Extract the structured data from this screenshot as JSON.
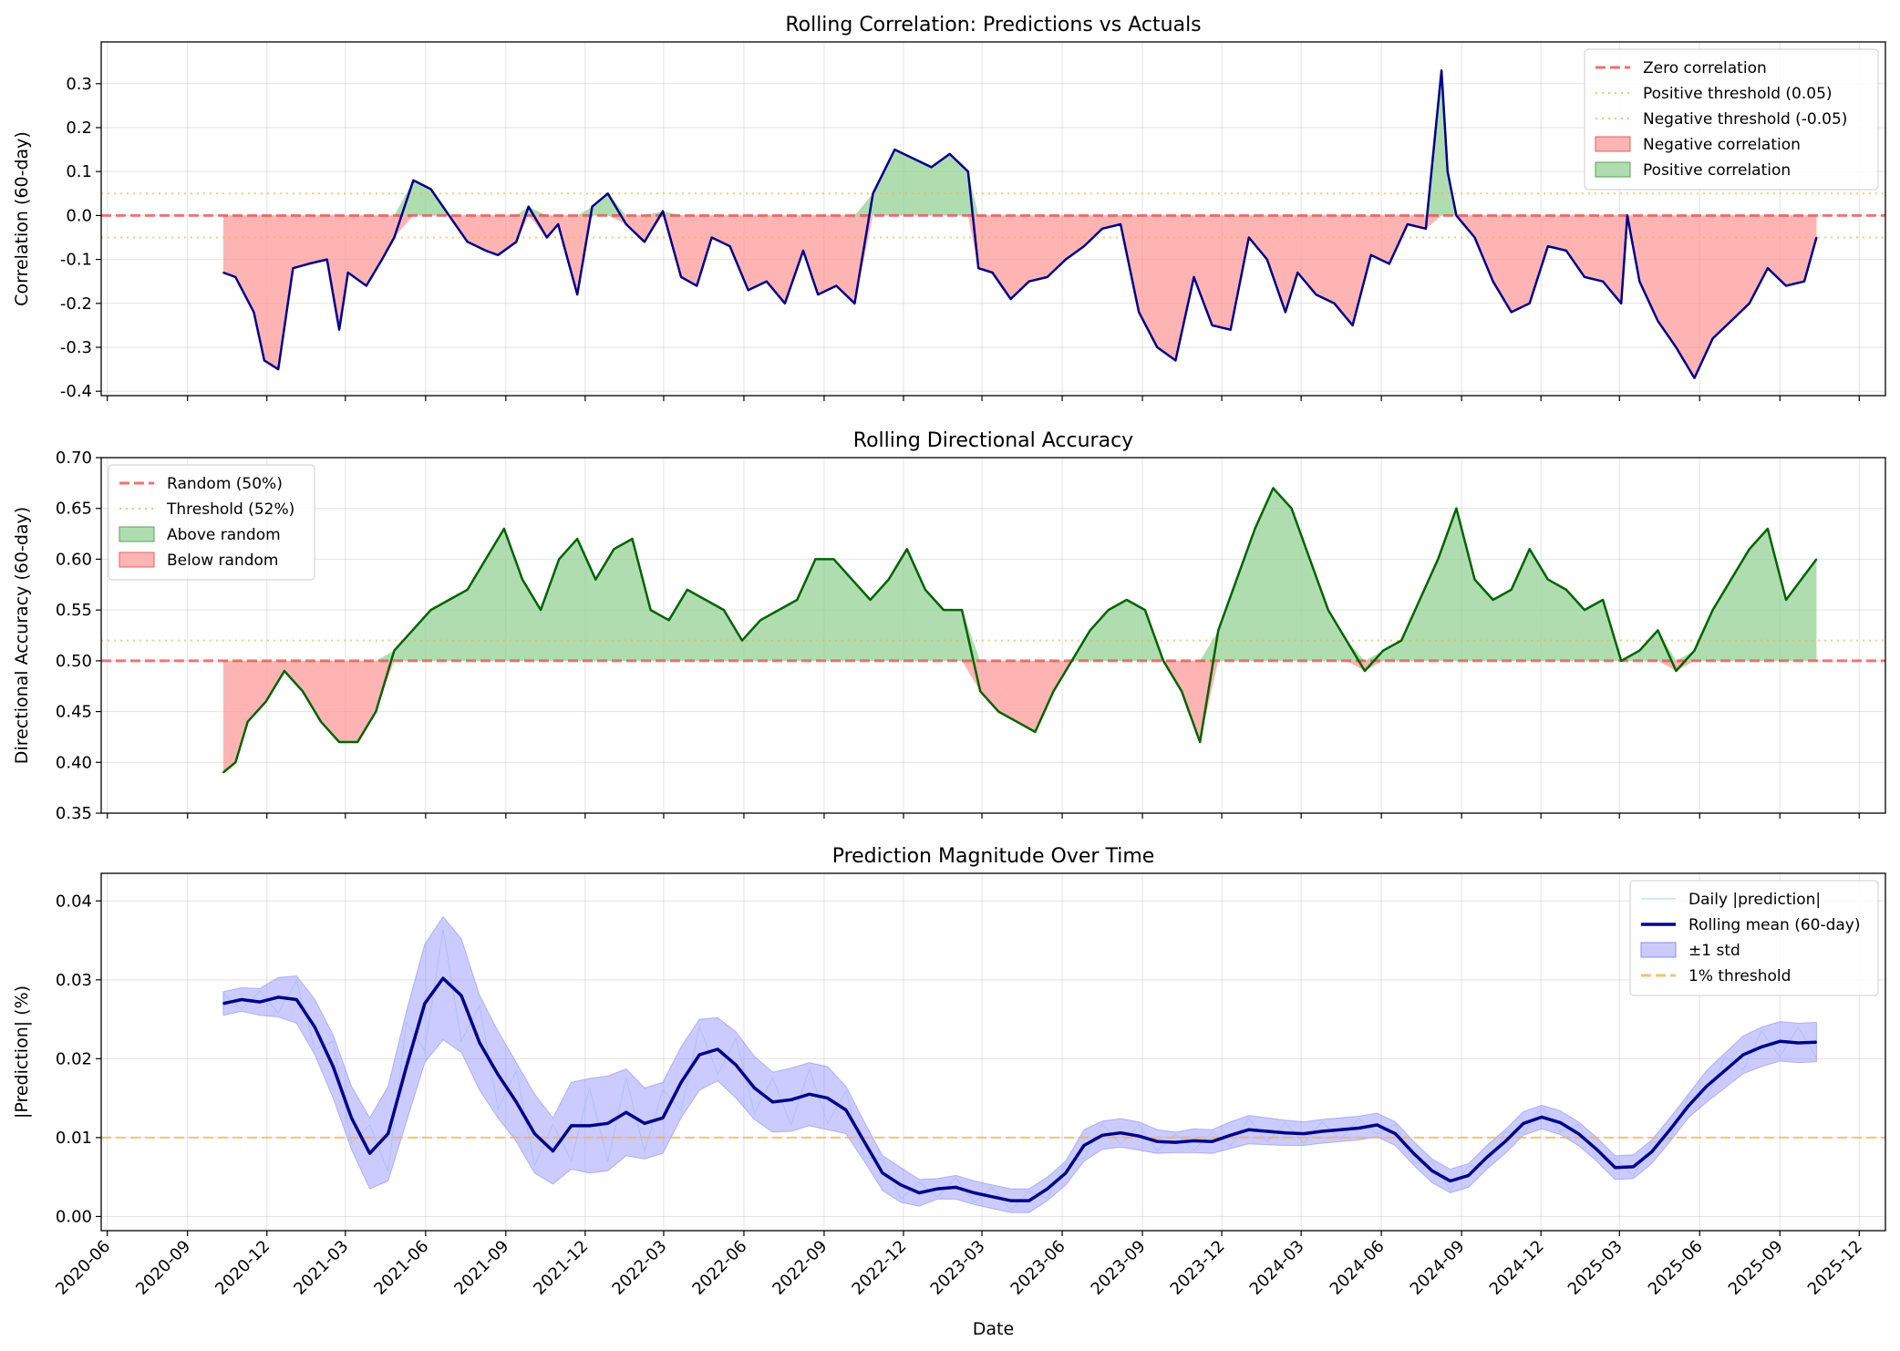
{
  "chart_data": [
    {
      "type": "line",
      "title": "Rolling Correlation: Predictions vs Actuals",
      "ylabel": "Correlation (60-day)",
      "ylim": [
        -0.41,
        0.395
      ],
      "yticks": [
        "-0.4",
        "-0.3",
        "-0.2",
        "-0.1",
        "0.0",
        "0.1",
        "0.2",
        "0.3"
      ],
      "ytick_values": [
        -0.4,
        -0.3,
        -0.2,
        -0.1,
        0.0,
        0.1,
        0.2,
        0.3
      ],
      "grid": true,
      "legend_position": "upper right",
      "legend": [
        "Zero correlation",
        "Positive threshold (0.05)",
        "Negative threshold (-0.05)",
        "Negative correlation",
        "Positive correlation"
      ],
      "reference_lines": [
        {
          "name": "Zero correlation",
          "y": 0.0,
          "color": "#ee4b4b",
          "style": "dashed"
        },
        {
          "name": "Positive threshold (0.05)",
          "y": 0.05,
          "color": "#f5b34a",
          "style": "dotted"
        },
        {
          "name": "Negative threshold (-0.05)",
          "y": -0.05,
          "color": "#f5b34a",
          "style": "dotted"
        }
      ],
      "fills": {
        "negative": {
          "name": "Negative correlation",
          "color": "#ff8c8c"
        },
        "positive": {
          "name": "Positive correlation",
          "color": "#8fce8f"
        }
      },
      "line_color": "#00008b",
      "x": [
        "2020-10-12",
        "2020-10-26",
        "2020-11-16",
        "2020-11-28",
        "2020-12-14",
        "2020-12-31",
        "2021-01-18",
        "2021-02-08",
        "2021-02-22",
        "2021-03-04",
        "2021-03-25",
        "2021-04-12",
        "2021-04-26",
        "2021-05-18",
        "2021-06-07",
        "2021-06-28",
        "2021-07-19",
        "2021-08-09",
        "2021-08-23",
        "2021-09-13",
        "2021-09-27",
        "2021-10-18",
        "2021-10-31",
        "2021-11-22",
        "2021-12-09",
        "2021-12-27",
        "2022-01-17",
        "2022-02-07",
        "2022-02-28",
        "2022-03-21",
        "2022-04-08",
        "2022-04-25",
        "2022-05-16",
        "2022-06-06",
        "2022-06-27",
        "2022-07-18",
        "2022-08-08",
        "2022-08-25",
        "2022-09-15",
        "2022-10-06",
        "2022-10-27",
        "2022-11-21",
        "2022-12-12",
        "2023-01-02",
        "2023-01-23",
        "2023-02-13",
        "2023-02-25",
        "2023-03-13",
        "2023-04-03",
        "2023-04-24",
        "2023-05-15",
        "2023-06-05",
        "2023-06-26",
        "2023-07-17",
        "2023-08-07",
        "2023-08-28",
        "2023-09-18",
        "2023-10-09",
        "2023-10-30",
        "2023-11-20",
        "2023-12-11",
        "2024-01-01",
        "2024-01-22",
        "2024-02-12",
        "2024-02-26",
        "2024-03-18",
        "2024-04-08",
        "2024-04-29",
        "2024-05-20",
        "2024-06-10",
        "2024-07-01",
        "2024-07-22",
        "2024-08-09",
        "2024-08-16",
        "2024-08-26",
        "2024-09-16",
        "2024-10-07",
        "2024-10-28",
        "2024-11-18",
        "2024-12-09",
        "2024-12-30",
        "2025-01-20",
        "2025-02-10",
        "2025-03-03",
        "2025-03-10",
        "2025-03-24",
        "2025-04-14",
        "2025-05-05",
        "2025-05-26",
        "2025-06-16",
        "2025-07-07",
        "2025-07-28",
        "2025-08-18",
        "2025-09-08",
        "2025-09-29",
        "2025-10-13"
      ],
      "y": [
        -0.13,
        -0.14,
        -0.22,
        -0.33,
        -0.35,
        -0.12,
        -0.11,
        -0.1,
        -0.26,
        -0.13,
        -0.16,
        -0.1,
        -0.05,
        0.08,
        0.06,
        0.0,
        -0.06,
        -0.08,
        -0.09,
        -0.06,
        0.02,
        -0.05,
        -0.02,
        -0.18,
        0.02,
        0.05,
        -0.02,
        -0.06,
        0.01,
        -0.14,
        -0.16,
        -0.05,
        -0.07,
        -0.17,
        -0.15,
        -0.2,
        -0.08,
        -0.18,
        -0.16,
        -0.2,
        0.05,
        0.15,
        0.13,
        0.11,
        0.14,
        0.1,
        -0.12,
        -0.13,
        -0.19,
        -0.15,
        -0.14,
        -0.1,
        -0.07,
        -0.03,
        -0.02,
        -0.22,
        -0.3,
        -0.33,
        -0.14,
        -0.25,
        -0.26,
        -0.05,
        -0.1,
        -0.22,
        -0.13,
        -0.18,
        -0.2,
        -0.25,
        -0.09,
        -0.11,
        -0.02,
        -0.03,
        0.33,
        0.1,
        0.0,
        -0.05,
        -0.15,
        -0.22,
        -0.2,
        -0.07,
        -0.08,
        -0.14,
        -0.15,
        -0.2,
        0.0,
        -0.15,
        -0.24,
        -0.3,
        -0.37,
        -0.28,
        -0.24,
        -0.2,
        -0.12,
        -0.16,
        -0.15,
        -0.05
      ]
    },
    {
      "type": "line",
      "title": "Rolling Directional Accuracy",
      "ylabel": "Directional Accuracy (60-day)",
      "ylim": [
        0.35,
        0.7
      ],
      "yticks": [
        "0.35",
        "0.40",
        "0.45",
        "0.50",
        "0.55",
        "0.60",
        "0.65",
        "0.70"
      ],
      "ytick_values": [
        0.35,
        0.4,
        0.45,
        0.5,
        0.55,
        0.6,
        0.65,
        0.7
      ],
      "grid": true,
      "legend_position": "upper left",
      "legend": [
        "Random (50%)",
        "Threshold (52%)",
        "Above random",
        "Below random"
      ],
      "reference_lines": [
        {
          "name": "Random (50%)",
          "y": 0.5,
          "color": "#ee4b4b",
          "style": "dashed"
        },
        {
          "name": "Threshold (52%)",
          "y": 0.52,
          "color": "#f5b34a",
          "style": "dotted"
        }
      ],
      "fills": {
        "negative": {
          "name": "Below random",
          "color": "#ff8c8c"
        },
        "positive": {
          "name": "Above random",
          "color": "#8fce8f"
        }
      },
      "line_color": "#006400",
      "x": [
        "2020-10-12",
        "2020-10-26",
        "2020-11-09",
        "2020-11-30",
        "2020-12-21",
        "2021-01-11",
        "2021-02-01",
        "2021-02-22",
        "2021-03-15",
        "2021-04-05",
        "2021-04-26",
        "2021-05-17",
        "2021-06-07",
        "2021-06-28",
        "2021-07-19",
        "2021-08-09",
        "2021-08-30",
        "2021-09-20",
        "2021-10-11",
        "2021-11-01",
        "2021-11-22",
        "2021-12-13",
        "2022-01-03",
        "2022-01-24",
        "2022-02-14",
        "2022-03-07",
        "2022-03-28",
        "2022-04-18",
        "2022-05-09",
        "2022-05-30",
        "2022-06-20",
        "2022-07-11",
        "2022-08-01",
        "2022-08-22",
        "2022-09-12",
        "2022-10-03",
        "2022-10-24",
        "2022-11-14",
        "2022-12-05",
        "2022-12-26",
        "2023-01-16",
        "2023-02-06",
        "2023-02-27",
        "2023-03-20",
        "2023-04-10",
        "2023-05-01",
        "2023-05-22",
        "2023-06-12",
        "2023-07-03",
        "2023-07-24",
        "2023-08-14",
        "2023-09-04",
        "2023-09-25",
        "2023-10-16",
        "2023-11-06",
        "2023-11-27",
        "2023-12-18",
        "2024-01-08",
        "2024-01-29",
        "2024-02-19",
        "2024-03-11",
        "2024-04-01",
        "2024-04-22",
        "2024-05-13",
        "2024-06-03",
        "2024-06-24",
        "2024-07-15",
        "2024-08-05",
        "2024-08-26",
        "2024-09-16",
        "2024-10-07",
        "2024-10-28",
        "2024-11-18",
        "2024-12-09",
        "2024-12-30",
        "2025-01-20",
        "2025-02-10",
        "2025-03-03",
        "2025-03-24",
        "2025-04-14",
        "2025-05-05",
        "2025-05-26",
        "2025-06-16",
        "2025-07-07",
        "2025-07-28",
        "2025-08-18",
        "2025-09-08",
        "2025-10-13"
      ],
      "y": [
        0.39,
        0.4,
        0.44,
        0.46,
        0.49,
        0.47,
        0.44,
        0.42,
        0.42,
        0.45,
        0.51,
        0.53,
        0.55,
        0.56,
        0.57,
        0.6,
        0.63,
        0.58,
        0.55,
        0.6,
        0.62,
        0.58,
        0.61,
        0.62,
        0.55,
        0.54,
        0.57,
        0.56,
        0.55,
        0.52,
        0.54,
        0.55,
        0.56,
        0.6,
        0.6,
        0.58,
        0.56,
        0.58,
        0.61,
        0.57,
        0.55,
        0.55,
        0.47,
        0.45,
        0.44,
        0.43,
        0.47,
        0.5,
        0.53,
        0.55,
        0.56,
        0.55,
        0.5,
        0.47,
        0.42,
        0.53,
        0.58,
        0.63,
        0.67,
        0.65,
        0.6,
        0.55,
        0.52,
        0.49,
        0.51,
        0.52,
        0.56,
        0.6,
        0.65,
        0.58,
        0.56,
        0.57,
        0.61,
        0.58,
        0.57,
        0.55,
        0.56,
        0.5,
        0.51,
        0.53,
        0.49,
        0.51,
        0.55,
        0.58,
        0.61,
        0.63,
        0.56,
        0.6
      ]
    },
    {
      "type": "line",
      "title": "Prediction Magnitude Over Time",
      "xlabel": "Date",
      "ylabel": "|Prediction| (%)",
      "ylim": [
        -0.0018,
        0.0435
      ],
      "yticks": [
        "0.00",
        "0.01",
        "0.02",
        "0.03",
        "0.04"
      ],
      "ytick_values": [
        0.0,
        0.01,
        0.02,
        0.03,
        0.04
      ],
      "grid": true,
      "legend_position": "upper right",
      "legend": [
        "Daily |prediction|",
        "Rolling mean (60-day)",
        "±1 std",
        "1% threshold"
      ],
      "reference_lines": [
        {
          "name": "1% threshold",
          "y": 0.01,
          "color": "#f5b34a",
          "style": "dashed"
        }
      ],
      "band_color": "#8c8cff",
      "line_color": "#00008b",
      "daily_color": "#bfe6e6",
      "x": [
        "2020-10-12",
        "2020-11-02",
        "2020-11-23",
        "2020-12-14",
        "2021-01-04",
        "2021-01-25",
        "2021-02-15",
        "2021-03-08",
        "2021-03-29",
        "2021-04-19",
        "2021-05-10",
        "2021-05-31",
        "2021-06-21",
        "2021-07-12",
        "2021-08-02",
        "2021-08-23",
        "2021-09-13",
        "2021-10-04",
        "2021-10-25",
        "2021-11-15",
        "2021-12-06",
        "2021-12-27",
        "2022-01-17",
        "2022-02-07",
        "2022-02-28",
        "2022-03-21",
        "2022-04-11",
        "2022-05-02",
        "2022-05-23",
        "2022-06-13",
        "2022-07-04",
        "2022-07-25",
        "2022-08-15",
        "2022-09-05",
        "2022-09-26",
        "2022-10-17",
        "2022-11-07",
        "2022-11-28",
        "2022-12-19",
        "2023-01-09",
        "2023-01-30",
        "2023-02-20",
        "2023-03-13",
        "2023-04-03",
        "2023-04-24",
        "2023-05-15",
        "2023-06-05",
        "2023-06-26",
        "2023-07-17",
        "2023-08-07",
        "2023-08-28",
        "2023-09-18",
        "2023-10-09",
        "2023-10-30",
        "2023-11-20",
        "2023-12-11",
        "2024-01-01",
        "2024-01-22",
        "2024-02-12",
        "2024-03-04",
        "2024-03-25",
        "2024-04-15",
        "2024-05-06",
        "2024-05-27",
        "2024-06-17",
        "2024-07-08",
        "2024-07-29",
        "2024-08-19",
        "2024-09-09",
        "2024-09-30",
        "2024-10-21",
        "2024-11-11",
        "2024-12-02",
        "2024-12-23",
        "2025-01-13",
        "2025-02-03",
        "2025-02-24",
        "2025-03-17",
        "2025-04-07",
        "2025-04-28",
        "2025-05-19",
        "2025-06-09",
        "2025-06-30",
        "2025-07-21",
        "2025-08-11",
        "2025-09-01",
        "2025-09-22",
        "2025-10-13"
      ],
      "y": [
        0.027,
        0.0275,
        0.0272,
        0.0278,
        0.0275,
        0.024,
        0.019,
        0.0125,
        0.008,
        0.0105,
        0.019,
        0.027,
        0.0302,
        0.028,
        0.022,
        0.018,
        0.0145,
        0.0105,
        0.0083,
        0.0115,
        0.0115,
        0.0118,
        0.0132,
        0.0118,
        0.0125,
        0.017,
        0.0205,
        0.0212,
        0.0192,
        0.0163,
        0.0145,
        0.0148,
        0.0155,
        0.015,
        0.0135,
        0.0095,
        0.0055,
        0.004,
        0.003,
        0.0035,
        0.0037,
        0.003,
        0.0025,
        0.002,
        0.002,
        0.0035,
        0.0055,
        0.009,
        0.0103,
        0.0106,
        0.0102,
        0.0095,
        0.0094,
        0.0096,
        0.0095,
        0.0103,
        0.011,
        0.0108,
        0.0106,
        0.0105,
        0.0108,
        0.011,
        0.0112,
        0.0116,
        0.0105,
        0.008,
        0.0058,
        0.0045,
        0.0052,
        0.0075,
        0.0095,
        0.0118,
        0.0126,
        0.0119,
        0.0105,
        0.0085,
        0.0062,
        0.0063,
        0.0082,
        0.011,
        0.014,
        0.0165,
        0.0185,
        0.0205,
        0.0215,
        0.0222,
        0.022,
        0.0221
      ],
      "std": [
        0.0015,
        0.0015,
        0.0017,
        0.0025,
        0.003,
        0.0035,
        0.004,
        0.004,
        0.0045,
        0.006,
        0.007,
        0.0075,
        0.0078,
        0.0072,
        0.006,
        0.0055,
        0.005,
        0.005,
        0.0042,
        0.0055,
        0.006,
        0.006,
        0.0055,
        0.0045,
        0.0045,
        0.0045,
        0.0045,
        0.004,
        0.0042,
        0.004,
        0.0038,
        0.004,
        0.004,
        0.004,
        0.003,
        0.0025,
        0.0022,
        0.0022,
        0.0017,
        0.0013,
        0.0015,
        0.0015,
        0.0015,
        0.0015,
        0.0015,
        0.0015,
        0.0015,
        0.002,
        0.0018,
        0.0018,
        0.0018,
        0.0015,
        0.0013,
        0.0015,
        0.0015,
        0.0017,
        0.0018,
        0.0017,
        0.0016,
        0.0015,
        0.0015,
        0.0015,
        0.0015,
        0.0015,
        0.0015,
        0.0015,
        0.0015,
        0.0015,
        0.0015,
        0.0015,
        0.0015,
        0.0015,
        0.0015,
        0.0015,
        0.0015,
        0.0015,
        0.0015,
        0.0015,
        0.0015,
        0.0015,
        0.0015,
        0.002,
        0.0022,
        0.0024,
        0.0025,
        0.0025,
        0.0025,
        0.0025
      ]
    }
  ],
  "x_axis": {
    "ticks": [
      "2020-06",
      "2020-09",
      "2020-12",
      "2021-03",
      "2021-06",
      "2021-09",
      "2021-12",
      "2022-03",
      "2022-06",
      "2022-09",
      "2022-12",
      "2023-03",
      "2023-06",
      "2023-09",
      "2023-12",
      "2024-03",
      "2024-06",
      "2024-09",
      "2024-12",
      "2025-03",
      "2025-06",
      "2025-09",
      "2025-12"
    ],
    "xlim": [
      "2020-05-25",
      "2025-12-31"
    ]
  }
}
